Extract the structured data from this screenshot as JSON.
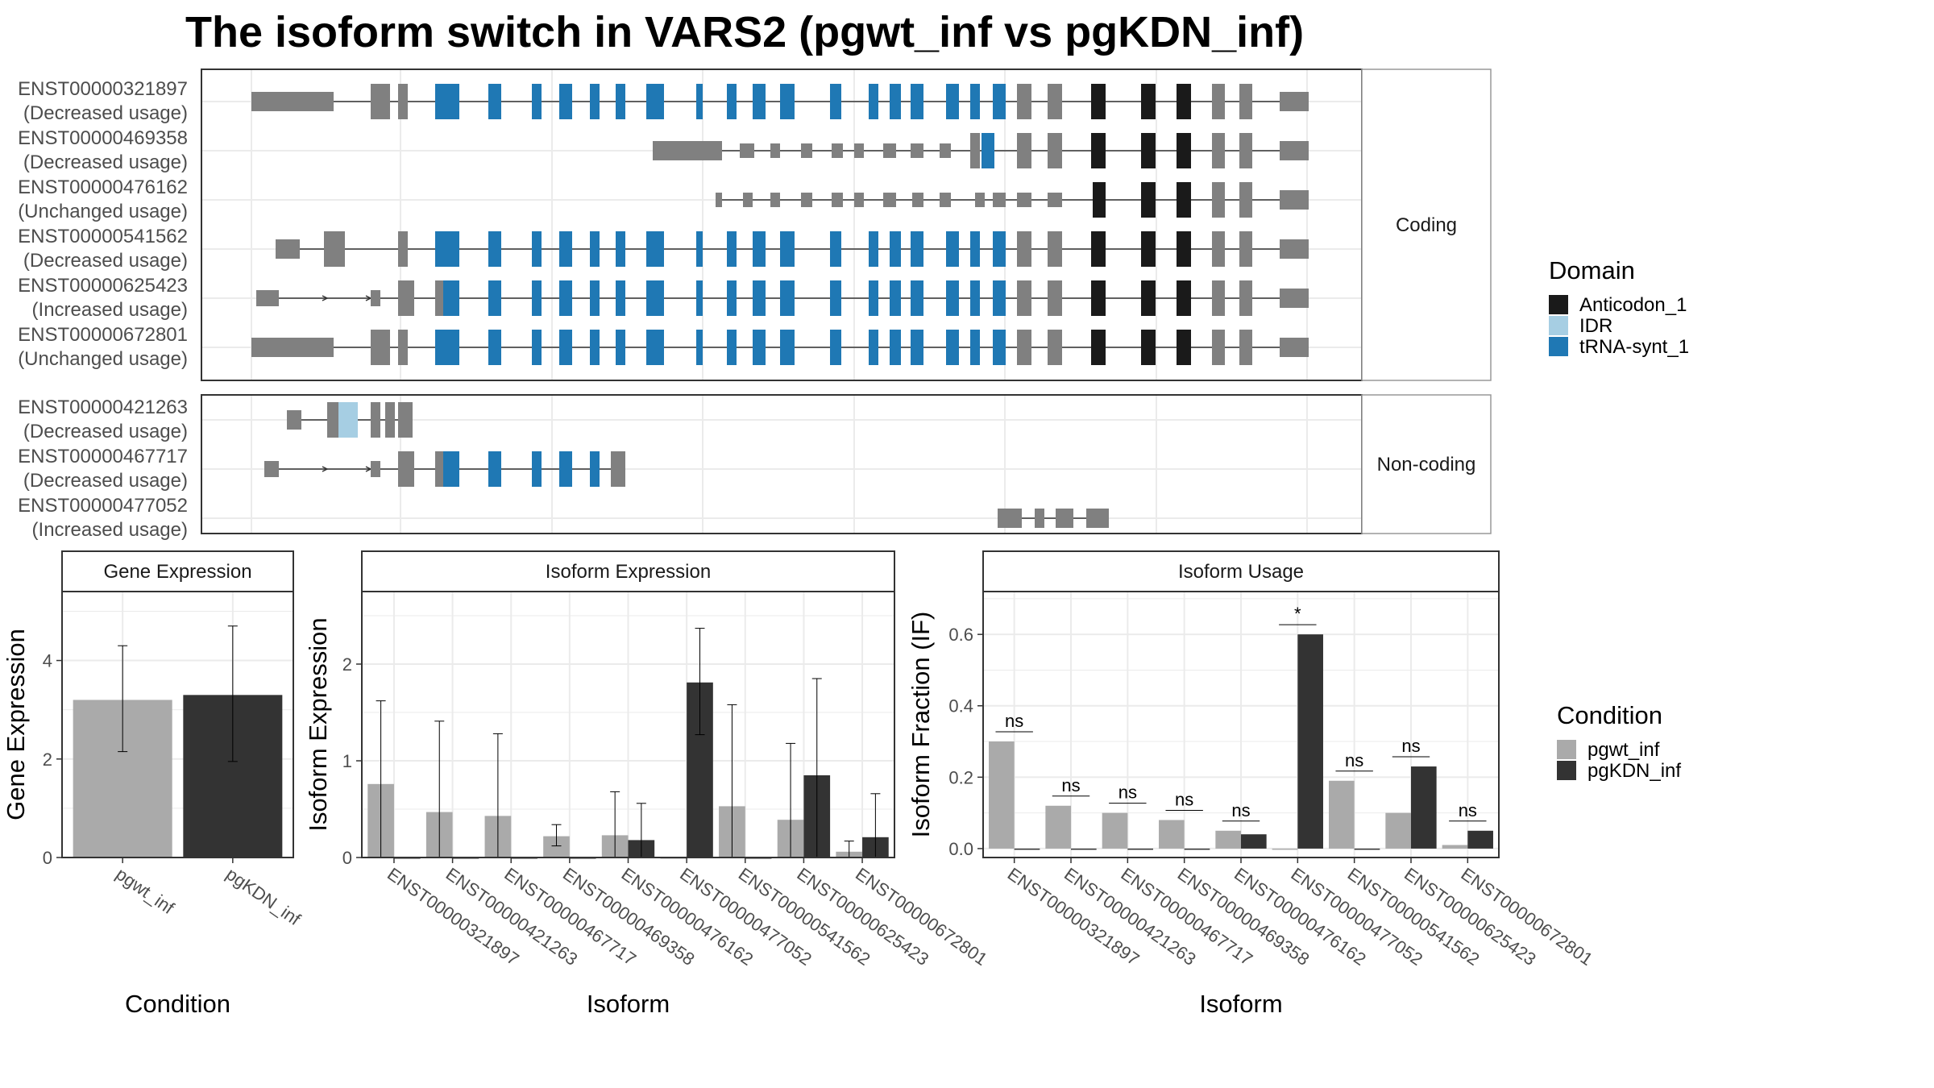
{
  "title": "The isoform switch in VARS2 (pgwt_inf vs pgKDN_inf)",
  "colors": {
    "Anticodon_1": "#1a1a1a",
    "IDR": "#a6cee3",
    "tRNA-synt_1": "#1f78b4",
    "utr": "#808080",
    "intron": "#333333",
    "pgwt_inf": "#aaaaaa",
    "pgKDN_inf": "#333333",
    "grid": "#ebebeb",
    "panel_border": "#333333",
    "strip_bg": "#ffffff"
  },
  "chart_data": [
    {
      "type": "gene-structure",
      "facets": [
        "Coding",
        "Non-coding"
      ],
      "transcripts": [
        {
          "id": "ENST00000321897",
          "usage": "(Decreased usage)",
          "facet": "Coding"
        },
        {
          "id": "ENST00000469358",
          "usage": "(Decreased usage)",
          "facet": "Coding"
        },
        {
          "id": "ENST00000476162",
          "usage": "(Unchanged usage)",
          "facet": "Coding"
        },
        {
          "id": "ENST00000541562",
          "usage": "(Decreased usage)",
          "facet": "Coding"
        },
        {
          "id": "ENST00000625423",
          "usage": "(Increased usage)",
          "facet": "Coding"
        },
        {
          "id": "ENST00000672801",
          "usage": "(Unchanged usage)",
          "facet": "Coding"
        },
        {
          "id": "ENST00000421263",
          "usage": "(Decreased usage)",
          "facet": "Non-coding"
        },
        {
          "id": "ENST00000467717",
          "usage": "(Decreased usage)",
          "facet": "Non-coding"
        },
        {
          "id": "ENST00000477052",
          "usage": "(Increased usage)",
          "facet": "Non-coding"
        }
      ],
      "legend": {
        "title": "Domain",
        "entries": [
          "Anticodon_1",
          "IDR",
          "tRNA-synt_1"
        ]
      }
    },
    {
      "type": "bar",
      "panel_title": "Gene Expression",
      "xlabel": "Condition",
      "ylabel": "Gene Expression",
      "categories": [
        "pgwt_inf",
        "pgKDN_inf"
      ],
      "values": [
        3.2,
        3.3
      ],
      "error_low": [
        2.15,
        1.95
      ],
      "error_high": [
        4.3,
        4.7
      ],
      "ylim": [
        0,
        5.4
      ],
      "yticks": [
        0,
        2,
        4
      ]
    },
    {
      "type": "bar",
      "panel_title": "Isoform Expression",
      "xlabel": "Isoform",
      "ylabel": "Isoform Expression",
      "categories": [
        "ENST00000321897",
        "ENST00000421263",
        "ENST00000467717",
        "ENST00000469358",
        "ENST00000476162",
        "ENST00000477052",
        "ENST00000541562",
        "ENST00000625423",
        "ENST00000672801"
      ],
      "series": [
        {
          "name": "pgwt_inf",
          "values": [
            0.76,
            0.47,
            0.43,
            0.22,
            0.23,
            0.0,
            0.53,
            0.39,
            0.06
          ],
          "error_low": [
            0,
            0,
            0,
            0.12,
            0,
            0,
            0,
            0,
            0
          ],
          "error_high": [
            1.62,
            1.41,
            1.28,
            0.34,
            0.68,
            0,
            1.58,
            1.18,
            0.17
          ]
        },
        {
          "name": "pgKDN_inf",
          "values": [
            0.0,
            0.0,
            0.0,
            0.0,
            0.18,
            1.81,
            0.0,
            0.85,
            0.21
          ],
          "error_low": [
            0,
            0,
            0,
            0,
            0,
            1.27,
            0,
            0,
            0
          ],
          "error_high": [
            0,
            0,
            0,
            0,
            0.56,
            2.37,
            0,
            1.85,
            0.66
          ]
        }
      ],
      "ylim": [
        0,
        2.75
      ],
      "yticks": [
        0,
        1,
        2
      ]
    },
    {
      "type": "bar",
      "panel_title": "Isoform Usage",
      "xlabel": "Isoform",
      "ylabel": "Isoform Fraction (IF)",
      "categories": [
        "ENST00000321897",
        "ENST00000421263",
        "ENST00000467717",
        "ENST00000469358",
        "ENST00000476162",
        "ENST00000477052",
        "ENST00000541562",
        "ENST00000625423",
        "ENST00000672801"
      ],
      "series": [
        {
          "name": "pgwt_inf",
          "values": [
            0.3,
            0.12,
            0.1,
            0.08,
            0.05,
            0.0,
            0.19,
            0.1,
            0.01
          ]
        },
        {
          "name": "pgKDN_inf",
          "values": [
            0.0,
            0.0,
            0.0,
            0.0,
            0.04,
            0.6,
            0.0,
            0.23,
            0.05
          ]
        }
      ],
      "significance": [
        "ns",
        "ns",
        "ns",
        "ns",
        "ns",
        "*",
        "ns",
        "ns",
        "ns"
      ],
      "ylim": [
        -0.025,
        0.72
      ],
      "yticks": [
        0.0,
        0.2,
        0.4,
        0.6
      ],
      "ytick_labels": [
        "0.0",
        "0.2",
        "0.4",
        "0.6"
      ]
    }
  ],
  "condition_legend": {
    "title": "Condition",
    "entries": [
      "pgwt_inf",
      "pgKDN_inf"
    ]
  }
}
